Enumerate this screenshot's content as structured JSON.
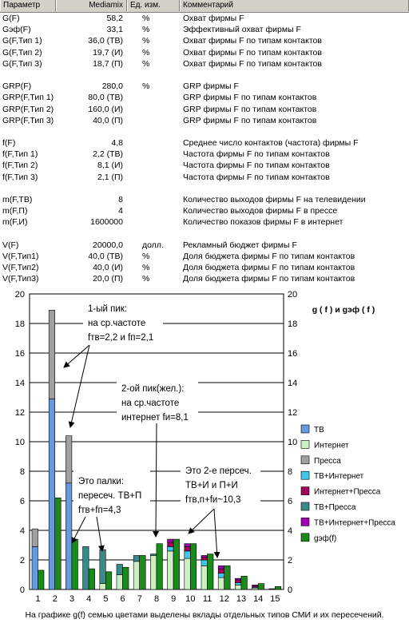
{
  "table": {
    "headers": [
      "Параметр",
      "Mediamix",
      "Ед. изм.",
      "Комментарий"
    ],
    "rows": [
      {
        "param": "G(F)",
        "value": "58,2",
        "unit": "%",
        "comment": "Охват фирмы F"
      },
      {
        "param": "Gэф(F)",
        "value": "33,1",
        "unit": "%",
        "comment": "Эффективный охват фирмы F"
      },
      {
        "param": "G(F,Тип 1)",
        "value": "36,0 (ТВ)",
        "unit": "%",
        "comment": "Охват фирмы F по типам контактов"
      },
      {
        "param": "G(F,Тип 2)",
        "value": "19,7 (И)",
        "unit": "%",
        "comment": "Охват фирмы F по типам контактов"
      },
      {
        "param": "G(F,Тип 3)",
        "value": "18,7 (П)",
        "unit": "%",
        "comment": "Охват фирмы F по типам контактов"
      },
      {
        "param": "",
        "value": "",
        "unit": "",
        "comment": ""
      },
      {
        "param": "GRP(F)",
        "value": "280,0",
        "unit": "%",
        "comment": "GRP фирмы F"
      },
      {
        "param": "GRP(F,Тип 1)",
        "value": "80,0 (ТВ)",
        "unit": "",
        "comment": "GRP фирмы F по типам контактов"
      },
      {
        "param": "GRP(F,Тип 2)",
        "value": "160,0 (И)",
        "unit": "",
        "comment": "GRP фирмы F по типам контактов"
      },
      {
        "param": "GRP(F,Тип 3)",
        "value": "40,0 (П)",
        "unit": "",
        "comment": "GRP фирмы F по типам контактов"
      },
      {
        "param": "",
        "value": "",
        "unit": "",
        "comment": ""
      },
      {
        "param": "f(F)",
        "value": "4,8",
        "unit": "",
        "comment": "Среднее число контактов (частота) фирмы F"
      },
      {
        "param": "f(F,Тип 1)",
        "value": "2,2 (ТВ)",
        "unit": "",
        "comment": "Частота фирмы F по типам контактов"
      },
      {
        "param": "f(F,Тип 2)",
        "value": "8,1 (И)",
        "unit": "",
        "comment": "Частота фирмы F по типам контактов"
      },
      {
        "param": "f(F,Тип 3)",
        "value": "2,1 (П)",
        "unit": "",
        "comment": "Частота фирмы F по типам контактов"
      },
      {
        "param": "",
        "value": "",
        "unit": "",
        "comment": ""
      },
      {
        "param": "m(F,ТВ)",
        "value": "8",
        "unit": "",
        "comment": "Количество выходов фирмы F на телевидении"
      },
      {
        "param": "m(F,П)",
        "value": "4",
        "unit": "",
        "comment": "Количество выходов фирмы F в прессе"
      },
      {
        "param": "m(F,И)",
        "value": "1600000",
        "unit": "",
        "comment": "Количество показов фирмы F в интернет"
      },
      {
        "param": "",
        "value": "",
        "unit": "",
        "comment": ""
      },
      {
        "param": "V(F)",
        "value": "20000,0",
        "unit": "долл.",
        "comment": "Рекламный бюджет фирмы F"
      },
      {
        "param": "V(F,Тип1)",
        "value": "40,0 (ТВ)",
        "unit": "%",
        "comment": "Доля бюджета фирмы F по типам контактов"
      },
      {
        "param": "V(F,Тип2)",
        "value": "40,0 (И)",
        "unit": "%",
        "comment": "Доля бюджета фирмы F по типам контактов"
      },
      {
        "param": "V(F,Тип3)",
        "value": "20,0 (П)",
        "unit": "%",
        "comment": "Доля бюджета фирмы F по типам контактов"
      }
    ]
  },
  "chart_data": {
    "type": "bar",
    "title": "g ( f ) и gэф ( f )",
    "categories": [
      "1",
      "2",
      "3",
      "4",
      "5",
      "6",
      "7",
      "8",
      "9",
      "10",
      "11",
      "12",
      "13",
      "14",
      "15"
    ],
    "ylim": [
      0,
      20
    ],
    "yticks": [
      "0",
      "2",
      "4",
      "6",
      "8",
      "10",
      "12",
      "14",
      "16",
      "18",
      "20"
    ],
    "grid": true,
    "legend_placement": "right",
    "stacked_series": [
      {
        "name": "ТВ",
        "color": "#6699e0",
        "values": [
          2.9,
          12.9,
          7.2,
          0,
          0,
          0,
          0,
          0,
          0,
          0,
          0,
          0,
          0,
          0,
          0
        ]
      },
      {
        "name": "Интернет",
        "color": "#ccf0c4",
        "values": [
          0,
          0,
          0,
          0,
          0.4,
          1.0,
          1.9,
          2.3,
          2.6,
          2.1,
          1.6,
          0.8,
          0.3,
          0.1,
          0.02
        ]
      },
      {
        "name": "Пресса",
        "color": "#a0a0a0",
        "values": [
          1.2,
          6.0,
          3.2,
          0,
          0,
          0,
          0,
          0,
          0,
          0,
          0,
          0,
          0,
          0,
          0
        ]
      },
      {
        "name": "ТВ+Интернет",
        "color": "#40c8e8",
        "values": [
          0,
          0,
          0,
          0,
          0,
          0,
          0,
          0,
          0.3,
          0.5,
          0.4,
          0.3,
          0.15,
          0.05,
          0
        ]
      },
      {
        "name": "Интернет+Пресса",
        "color": "#a0005a",
        "values": [
          0,
          0,
          0,
          0,
          0,
          0,
          0,
          0,
          0.3,
          0.3,
          0.2,
          0.3,
          0.2,
          0.1,
          0.03
        ]
      },
      {
        "name": "ТВ+Пресса",
        "color": "#3a8a8a",
        "values": [
          0,
          0,
          0,
          2.9,
          2.3,
          0.7,
          0.4,
          0.1,
          0,
          0,
          0,
          0,
          0,
          0,
          0
        ]
      },
      {
        "name": "ТВ+Интернет+Пресса",
        "color": "#a000b0",
        "values": [
          0,
          0,
          0,
          0,
          0,
          0,
          0,
          0,
          0.2,
          0.2,
          0.1,
          0.2,
          0.1,
          0.05,
          0
        ]
      }
    ],
    "effective_series": {
      "name": "gэф(f)",
      "color": "#1a8a1a",
      "values": [
        1.3,
        6.2,
        3.4,
        1.4,
        1.2,
        1.5,
        2.3,
        3.1,
        3.4,
        3.1,
        2.4,
        1.6,
        0.9,
        0.4,
        0.2
      ]
    },
    "annotations": [
      {
        "id": "ann-peak1",
        "lines": [
          "1-ый пик:",
          "на ср.частоте",
          "fтв=2,2 и fп=2,1"
        ]
      },
      {
        "id": "ann-peak2",
        "lines": [
          "2-ой пик(жел.):",
          "на ср.частоте",
          "интернет fи=8,1"
        ]
      },
      {
        "id": "ann-sticks",
        "lines": [
          "Это палки:",
          "пересеч.  ТВ+П",
          "fтв+fп=4,3"
        ]
      },
      {
        "id": "ann-cross2",
        "lines": [
          "Это 2-е персеч.",
          "ТВ+И и П+И",
          "fтв,п+fи~10,3"
        ]
      }
    ],
    "caption": "На графике g(f) семью цветами выделены вклады отдельных типов СМИ и их пересечений."
  }
}
